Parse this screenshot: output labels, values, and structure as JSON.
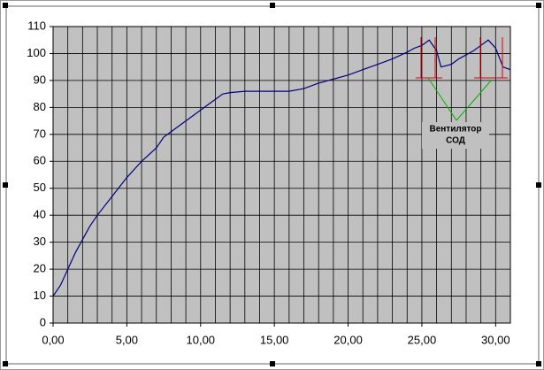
{
  "chart_data": {
    "type": "line",
    "x": [
      0,
      0.5,
      1,
      1.5,
      2,
      2.5,
      3,
      4,
      5,
      6,
      7,
      7.5,
      8,
      9,
      10,
      11,
      11.5,
      12,
      13,
      16,
      17,
      18,
      19,
      20,
      21,
      22,
      23,
      24,
      24.5,
      25,
      25.5,
      26,
      26.3,
      27,
      27.5,
      28.5,
      29,
      29.5,
      30,
      30.5,
      31
    ],
    "series": [
      {
        "color": "#000080",
        "values": [
          10,
          14,
          20,
          26,
          31,
          36,
          40,
          47,
          54,
          60,
          65,
          69,
          71,
          75,
          79,
          83,
          85,
          85.5,
          86,
          86,
          87,
          89,
          90.5,
          92,
          94,
          96,
          98,
          100.5,
          102,
          103,
          105,
          101,
          95,
          96,
          98,
          101,
          103,
          105,
          102,
          95,
          94
        ]
      }
    ],
    "xlim": [
      0,
      31
    ],
    "xticks": [
      {
        "value": 0,
        "label": "0,00"
      },
      {
        "value": 5,
        "label": "5,00"
      },
      {
        "value": 10,
        "label": "10,00"
      },
      {
        "value": 15,
        "label": "15,00"
      },
      {
        "value": 20,
        "label": "20,00"
      },
      {
        "value": 25,
        "label": "25,00"
      },
      {
        "value": 30,
        "label": "30,00"
      }
    ],
    "xminorticks": [
      0,
      1,
      2,
      3,
      4,
      5,
      6,
      7,
      8,
      9,
      10,
      11,
      12,
      13,
      14,
      15,
      16,
      17,
      18,
      19,
      20,
      21,
      22,
      23,
      24,
      25,
      26,
      27,
      28,
      29,
      30,
      31
    ],
    "ylim": [
      0,
      110
    ],
    "yticks": [
      0,
      10,
      20,
      30,
      40,
      50,
      60,
      70,
      80,
      90,
      100,
      110
    ],
    "grid": true,
    "plot_background": "#c0c0c0",
    "annotations": [
      "Вентилятор",
      "СОД"
    ]
  }
}
